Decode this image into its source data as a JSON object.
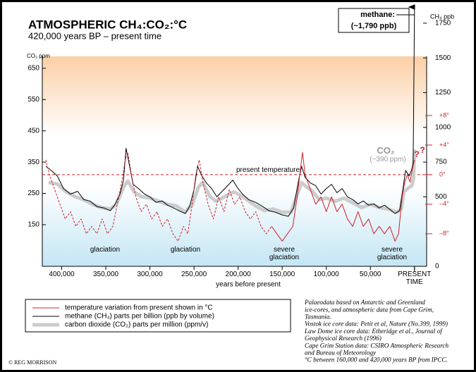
{
  "chart_data": {
    "type": "line",
    "title": "ATMOSPHERIC CH₄:CO₂:°C",
    "subtitle": "420,000 years BP – present time",
    "x_label": "years before present",
    "y_label": "CO₂ ppm",
    "y2_label": "CH₄ ppb",
    "xlim": [
      422000,
      -13000
    ],
    "xticks": [
      {
        "value": 400000,
        "label": "400,000"
      },
      {
        "value": 350000,
        "label": "350,000"
      },
      {
        "value": 300000,
        "label": "300,000"
      },
      {
        "value": 250000,
        "label": "250,000"
      },
      {
        "value": 200000,
        "label": "200,000"
      },
      {
        "value": 150000,
        "label": "150,000"
      },
      {
        "value": 100000,
        "label": "100,000"
      },
      {
        "value": 50000,
        "label": "50,000"
      },
      {
        "value": 0,
        "label": "PRESENT TIME"
      }
    ],
    "ylim": [
      17,
      688
    ],
    "yticks": [
      150,
      250,
      350,
      450,
      550,
      650
    ],
    "y2lim": [
      0,
      1790
    ],
    "y2ticks": [
      0,
      500,
      750,
      1000,
      1250,
      1500,
      1750
    ],
    "y3lim": [
      -12.4,
      16
    ],
    "y3ticks": [
      {
        "value": 8,
        "label": "+8°"
      },
      {
        "value": 4,
        "label": "+4°"
      },
      {
        "value": 0,
        "label": "0°"
      },
      {
        "value": -4,
        "label": "–4°"
      },
      {
        "value": -8,
        "label": "–8°"
      }
    ],
    "series": [
      {
        "name": "carbon dioxide (CO₂) parts per million (ppm/v)",
        "color": "#cccccc",
        "line_width": 5,
        "axis": "y",
        "x": [
          415000,
          405000,
          395000,
          385000,
          375000,
          365000,
          355000,
          345000,
          338000,
          330000,
          325000,
          318000,
          310000,
          300000,
          290000,
          280000,
          270000,
          260000,
          252000,
          245000,
          240000,
          232000,
          225000,
          215000,
          205000,
          198000,
          190000,
          180000,
          170000,
          160000,
          150000,
          140000,
          135000,
          128000,
          122000,
          115000,
          108000,
          100000,
          90000,
          80000,
          70000,
          60000,
          50000,
          40000,
          30000,
          20000,
          15000,
          12000,
          8000,
          3000,
          1000,
          0
        ],
        "values": [
          285,
          280,
          255,
          240,
          230,
          215,
          205,
          200,
          215,
          270,
          290,
          255,
          240,
          235,
          225,
          215,
          210,
          190,
          215,
          270,
          285,
          240,
          225,
          240,
          255,
          245,
          230,
          210,
          195,
          200,
          190,
          190,
          230,
          285,
          270,
          255,
          230,
          235,
          225,
          235,
          220,
          205,
          215,
          205,
          200,
          190,
          200,
          255,
          265,
          275,
          300,
          390
        ]
      },
      {
        "name": "methane (CH₄) parts per billion (ppb by volume)",
        "color": "#000000",
        "line_width": 1,
        "axis": "y2",
        "x": [
          418000,
          412000,
          405000,
          398000,
          390000,
          382000,
          375000,
          368000,
          360000,
          352000,
          345000,
          340000,
          334000,
          330000,
          327000,
          323000,
          319000,
          313000,
          306000,
          300000,
          293000,
          286000,
          280000,
          273000,
          267000,
          260000,
          255000,
          250000,
          246000,
          241000,
          236000,
          230000,
          224000,
          218000,
          212000,
          206000,
          200000,
          195000,
          188000,
          180000,
          172000,
          165000,
          158000,
          150000,
          143000,
          137000,
          132000,
          128000,
          124000,
          118000,
          112000,
          106000,
          100000,
          94000,
          88000,
          82000,
          76000,
          70000,
          64000,
          58000,
          52000,
          46000,
          40000,
          34000,
          28000,
          22000,
          17000,
          13000,
          10000,
          6000,
          3000,
          1500,
          0
        ],
        "values": [
          720,
          690,
          650,
          560,
          520,
          540,
          480,
          470,
          430,
          420,
          400,
          440,
          520,
          620,
          850,
          720,
          590,
          560,
          520,
          500,
          460,
          470,
          440,
          420,
          400,
          380,
          430,
          550,
          720,
          650,
          600,
          560,
          500,
          540,
          580,
          620,
          560,
          520,
          480,
          460,
          430,
          400,
          390,
          370,
          360,
          420,
          600,
          720,
          640,
          600,
          580,
          520,
          560,
          590,
          530,
          560,
          500,
          480,
          450,
          470,
          440,
          450,
          420,
          440,
          410,
          380,
          400,
          560,
          690,
          650,
          700,
          750,
          1790
        ]
      },
      {
        "name": "temperature variation from present shown in °C",
        "color": "#d0202a",
        "line_width": 1,
        "axis": "y3",
        "dashed_x_min": 160000,
        "x": [
          418000,
          414000,
          408000,
          402000,
          396000,
          390000,
          384000,
          378000,
          372000,
          366000,
          360000,
          354000,
          348000,
          342000,
          337000,
          332000,
          328000,
          325000,
          321000,
          316000,
          310000,
          304000,
          298000,
          292000,
          286000,
          280000,
          274000,
          268000,
          262000,
          257000,
          252000,
          248000,
          244000,
          240000,
          234000,
          228000,
          222000,
          216000,
          210000,
          204000,
          198000,
          192000,
          186000,
          180000,
          174000,
          168000,
          162000,
          156000,
          150000,
          144000,
          138000,
          133000,
          129000,
          127000,
          124000,
          118000,
          112000,
          106000,
          100000,
          94000,
          88000,
          82000,
          76000,
          70000,
          64000,
          58000,
          52000,
          46000,
          40000,
          34000,
          28000,
          22000,
          18000,
          14000,
          11000,
          8000,
          5000,
          2000,
          0
        ],
        "values": [
          2,
          0,
          -2,
          -4,
          -6,
          -5,
          -7,
          -6,
          -8,
          -7,
          -8,
          -6,
          -8,
          -7,
          -4,
          -1,
          2,
          3,
          0,
          -3,
          -5,
          -4,
          -6,
          -5,
          -7,
          -6,
          -8,
          -9,
          -7,
          -8,
          -4,
          0,
          2,
          -1,
          -4,
          -6,
          -3,
          -5,
          -2,
          -4,
          -3,
          -5,
          -6,
          -5,
          -7,
          -8,
          -7,
          -8,
          -9,
          -8,
          -7,
          -3,
          1,
          3,
          0,
          -2,
          -4,
          -3,
          -5,
          -3,
          -5,
          -4,
          -6,
          -7,
          -5,
          -7,
          -6,
          -8,
          -7,
          -8,
          -7,
          -9,
          -8,
          -3,
          -1,
          0,
          -1,
          1,
          2
        ]
      }
    ],
    "annotations": [
      "present temperature",
      "glaciation",
      "glaciation",
      "severe glaciation",
      "severe glaciation",
      "CO₂",
      "(~390 ppm)",
      "?",
      "?"
    ],
    "methane_label": [
      "methane:",
      "(~1,790 ppb)"
    ],
    "notes": [
      "Palaeodata based on Antarctic and Greenland",
      "ice-cores, and atmospheric data from Cape Grim,",
      "Tasmania.",
      "Vostok ice core data: Petit et al, Nature (No.399, 1999)",
      "Law Dome ice core data: Etheridge et al., Journal of",
      "Geophysical Research (1996)",
      "Cape Grim Station data: CSIRO Atmospheric Research",
      "and Bureau of Meteorology",
      "°C between 160,000 and 420,000 years BP from IPCC."
    ],
    "copyright": "© REG MORRISON"
  }
}
